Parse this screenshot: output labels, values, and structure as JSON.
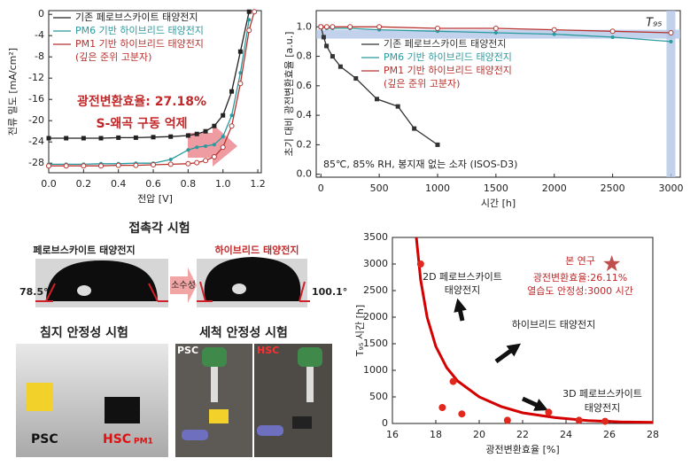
{
  "chart_data": [
    {
      "type": "line",
      "x_label": "전압 [V]",
      "y_label": "전류 밀도 [mA/cm²]",
      "xlim": [
        0,
        1.22
      ],
      "ylim": [
        -29.8,
        0.7
      ],
      "xticks": [
        {
          "value": 0,
          "label": "0.0"
        },
        0.2,
        0.4,
        0.6,
        0.8,
        {
          "value": 1,
          "label": "1.0"
        },
        1.2
      ],
      "yticks": [
        0,
        -4,
        -8,
        -12,
        -16,
        -20,
        -24,
        -28
      ],
      "x": [
        0,
        0.1,
        0.2,
        0.3,
        0.4,
        0.5,
        0.6,
        0.7,
        0.8,
        0.85,
        0.9,
        0.95,
        1.0,
        1.05,
        1.1,
        1.15,
        1.18
      ],
      "series": [
        {
          "name": "기존 페로브스카이트 태양전지",
          "color": "#222222",
          "marker": "square",
          "values": [
            -23.3,
            -23.3,
            -23.3,
            -23.3,
            -23.2,
            -23.2,
            -23.1,
            -23.0,
            -22.8,
            -22.5,
            -22.0,
            -21.0,
            -19.0,
            -14.5,
            -7,
            0.5,
            null
          ]
        },
        {
          "name": "PM6 기반 하이브리드 태양전지",
          "color": "#2a9a9e",
          "marker": "circle",
          "values": [
            -28.2,
            -28.2,
            -28.2,
            -28.1,
            -28.1,
            -28.0,
            -28.0,
            -27.3,
            -25.5,
            -25.0,
            -24.8,
            -24.5,
            -23,
            -19,
            -11,
            -1,
            null
          ]
        },
        {
          "name": "PM1 기반 하이브리드 태양전지",
          "color": "#b8322e",
          "marker": "open",
          "values": [
            -28.5,
            -28.5,
            -28.5,
            -28.5,
            -28.4,
            -28.4,
            -28.3,
            -28.2,
            -28.1,
            -27.9,
            -27.5,
            -26.8,
            -25,
            -21,
            -13,
            -3,
            0.5
          ]
        }
      ],
      "legend_note": "(깊은 준위 고분자)",
      "annotations": [
        "광전변환효율: 27.18%",
        "S-왜곡 구동 억제"
      ]
    },
    {
      "type": "line",
      "x_label": "시간 [h]",
      "y_label": "초기 대비 광전변환효율 [a.u.]",
      "xlim": [
        -40,
        3080
      ],
      "ylim": [
        -0.02,
        1.11
      ],
      "xticks": [
        0,
        500,
        1000,
        1500,
        2000,
        2500,
        3000
      ],
      "yticks": [
        {
          "value": 0,
          "label": "0.0"
        },
        0.2,
        0.4,
        0.6,
        0.8,
        {
          "value": 1,
          "label": "1.0"
        }
      ],
      "series": [
        {
          "name": "기존 페로브스카이트 태양전지",
          "color": "#333333",
          "marker": "square",
          "x": [
            0,
            24,
            48,
            100,
            168,
            300,
            480,
            660,
            800,
            1000
          ],
          "values": [
            1.0,
            0.93,
            0.87,
            0.8,
            0.73,
            0.65,
            0.51,
            0.46,
            0.31,
            0.2
          ]
        },
        {
          "name": "PM6 기반 하이브리드 태양전지",
          "color": "#2a9a9e",
          "marker": "circle",
          "x": [
            0,
            50,
            100,
            250,
            500,
            1000,
            1500,
            2000,
            2500,
            3000
          ],
          "values": [
            1.0,
            0.99,
            0.99,
            0.99,
            0.98,
            0.97,
            0.96,
            0.95,
            0.93,
            0.9
          ]
        },
        {
          "name": "PM1 기반 하이브리드 태양전지",
          "color": "#b8322e",
          "marker": "open",
          "x": [
            0,
            50,
            100,
            250,
            500,
            1000,
            1500,
            2000,
            2500,
            3000
          ],
          "values": [
            1.0,
            1.0,
            1.0,
            1.0,
            1.0,
            0.99,
            0.99,
            0.98,
            0.97,
            0.96
          ]
        }
      ],
      "legend_note": "(깊은 준위 고분자)",
      "t95_label": "T₉₅",
      "t95_level": 0.95,
      "t95_time": 3000,
      "note": "85℃, 85% RH, 봉지재 없는 소자 (ISOS-D3)"
    },
    {
      "type": "scatter",
      "x_label": "광전변환효율 [%]",
      "y_label": "T₉₅ 시간 [h]",
      "xlim": [
        16,
        28
      ],
      "ylim": [
        0,
        3500
      ],
      "xticks": [
        16,
        18,
        20,
        22,
        24,
        26,
        28
      ],
      "yticks": [
        0,
        500,
        1000,
        1500,
        2000,
        2500,
        3000,
        3500
      ],
      "color": "#e0281e",
      "x": [
        17.3,
        18.3,
        18.8,
        19.2,
        21.3,
        23.2,
        24.6,
        25.8
      ],
      "values": [
        3000,
        300,
        790,
        180,
        60,
        210,
        60,
        40
      ],
      "fit": {
        "color": "#d40000",
        "x": [
          17.1,
          17.3,
          17.6,
          18.0,
          18.5,
          19,
          20,
          21,
          22,
          23.5,
          25,
          26.5,
          28
        ],
        "values": [
          3500,
          2700,
          2000,
          1450,
          1050,
          800,
          500,
          320,
          200,
          110,
          55,
          30,
          20
        ]
      },
      "star": {
        "color": "#c0504d",
        "x": [
          26.11
        ],
        "values": [
          3000
        ]
      },
      "this_work": "본 연구",
      "this_work_lines": [
        "광전변환효율:26.11%",
        "열습도 안정성:3000 시간"
      ],
      "ann_2d": [
        "2D 페로브스카이트",
        "태양전지"
      ],
      "ann_hybrid": "하이브리드 태양전지",
      "ann_3d": [
        "3D 페로브스카이트",
        "태양전지"
      ]
    }
  ],
  "photos": {
    "contact_angle": {
      "title": "접촉각 시험",
      "left_label": "페로브스카이트 태양전지",
      "right_label": "하이브리드 태양전지",
      "left_angle": "78.5°",
      "right_angle": "100.1°",
      "arrow_label": "소수성"
    },
    "immersion": {
      "title": "침지 안정성 시험",
      "left_label": "PSC",
      "right_label": "HSC",
      "right_sub": "PM1"
    },
    "washing": {
      "title": "세척 안정성 시험",
      "left_label": "PSC",
      "right_label": "HSC"
    }
  }
}
